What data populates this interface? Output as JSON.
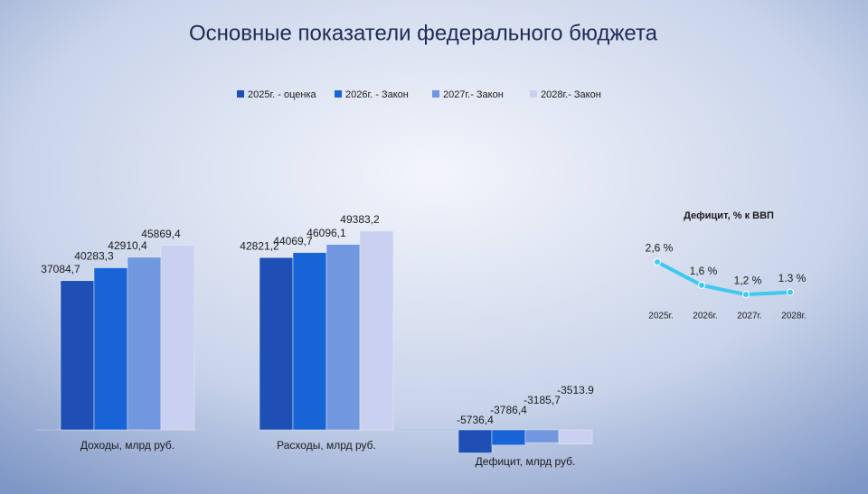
{
  "title": "Основные показатели федерального бюджета",
  "chart_data": [
    {
      "type": "bar",
      "categories": [
        "Доходы, млрд руб.",
        "Расходы, млрд руб.",
        "Дефицит, млрд руб."
      ],
      "series": [
        {
          "name": "2025г. - оценка",
          "color": "#1d4fb5",
          "values": [
            37084.7,
            42821.2,
            -5736.4
          ],
          "value_labels": [
            "37084,7",
            "42821,2",
            "-5736,4"
          ]
        },
        {
          "name": "2026г. - Закон",
          "color": "#1764d6",
          "values": [
            40283.3,
            44069.7,
            -3786.4
          ],
          "value_labels": [
            "40283,3",
            "44069,7",
            "-3786,4"
          ]
        },
        {
          "name": "2027г.- Закон",
          "color": "#7197df",
          "values": [
            42910.4,
            46096.1,
            -3185.7
          ],
          "value_labels": [
            "42910,4",
            "46096,1",
            "-3185,7"
          ]
        },
        {
          "name": "2028г.- Закон",
          "color": "#c9d0f0",
          "values": [
            45869.4,
            49383.2,
            -3513.9
          ],
          "value_labels": [
            "45869,4",
            "49383,2",
            "-3513.9"
          ]
        }
      ]
    },
    {
      "type": "line",
      "title": "Дефицит, % к ВВП",
      "categories": [
        "2025г.",
        "2026г.",
        "2027г.",
        "2028г."
      ],
      "values": [
        2.6,
        1.6,
        1.2,
        1.3
      ],
      "value_labels": [
        "2,6 %",
        "1,6 %",
        "1,2 %",
        "1.3 %"
      ],
      "color": "#3ec8f2"
    }
  ]
}
